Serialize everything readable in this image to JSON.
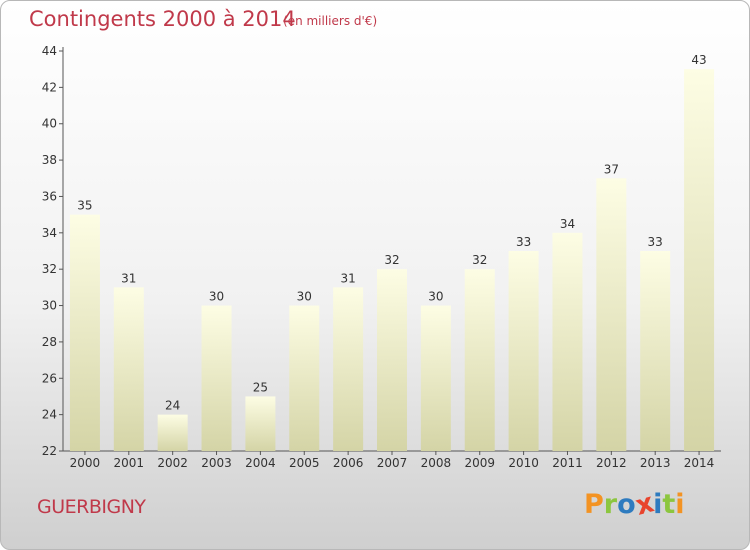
{
  "chart_data": {
    "type": "bar",
    "title": "Contingents 2000 à 2014",
    "subtitle": "(en milliers d'€)",
    "categories": [
      "2000",
      "2001",
      "2002",
      "2003",
      "2004",
      "2005",
      "2006",
      "2007",
      "2008",
      "2009",
      "2010",
      "2011",
      "2012",
      "2013",
      "2014"
    ],
    "values": [
      35,
      31,
      24,
      30,
      25,
      30,
      31,
      32,
      30,
      32,
      33,
      34,
      37,
      33,
      43
    ],
    "ylim": [
      22,
      44
    ],
    "yticks": [
      22,
      24,
      26,
      28,
      30,
      32,
      34,
      36,
      38,
      40,
      42,
      44
    ],
    "xlabel": "",
    "ylabel": "",
    "grid": false,
    "legend": "none"
  },
  "footer": {
    "commune": "GUERBIGNY",
    "logo_text": "Proxiti"
  },
  "colors": {
    "title": "#c0394a",
    "bar_top": "#fdfde4",
    "bar_bottom": "#d4d4a6",
    "logo_letters": [
      "#f39323",
      "#8cc63f",
      "#2e7bbf",
      "#e8442d",
      "#2e7bbf",
      "#8cc63f",
      "#f39323"
    ]
  }
}
